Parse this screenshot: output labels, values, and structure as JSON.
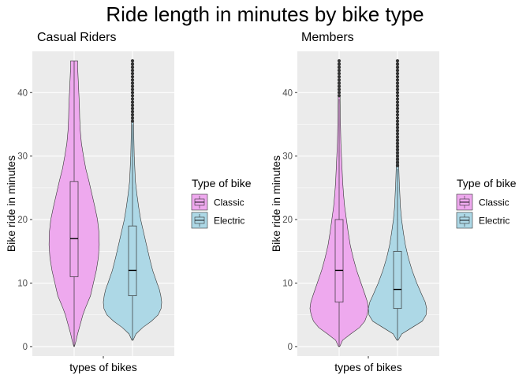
{
  "figure_title": "Ride length in minutes by bike type",
  "colors": {
    "classic": "#EEA9EE",
    "electric": "#ADD8E6",
    "panel_bg": "#EBEBEB",
    "grid": "#FFFFFF",
    "outline": "#333333",
    "outlier": "#333333"
  },
  "chart_data": [
    {
      "type": "violin",
      "title": "Casual Riders",
      "xlabel": "types of bikes",
      "ylabel": "Bike ride in minutes",
      "ylim": [
        -1.5,
        46.5
      ],
      "yticks": [
        0,
        10,
        20,
        30,
        40
      ],
      "legend": {
        "title": "Type of bike",
        "entries": [
          "Classic",
          "Electric"
        ]
      },
      "series": [
        {
          "name": "Classic",
          "color_key": "classic",
          "box": {
            "q1": 11,
            "median": 17,
            "q3": 26,
            "whisker_low": 0,
            "whisker_high": 45
          },
          "outliers": [],
          "density": [
            [
              0,
              0.01
            ],
            [
              1,
              0.07
            ],
            [
              2,
              0.12
            ],
            [
              3,
              0.18
            ],
            [
              4,
              0.24
            ],
            [
              5,
              0.3
            ],
            [
              6,
              0.38
            ],
            [
              7,
              0.47
            ],
            [
              8,
              0.56
            ],
            [
              10,
              0.66
            ],
            [
              12,
              0.76
            ],
            [
              14,
              0.83
            ],
            [
              16,
              0.86
            ],
            [
              18,
              0.85
            ],
            [
              20,
              0.8
            ],
            [
              22,
              0.71
            ],
            [
              24,
              0.61
            ],
            [
              26,
              0.51
            ],
            [
              28,
              0.4
            ],
            [
              30,
              0.32
            ],
            [
              32,
              0.25
            ],
            [
              34,
              0.21
            ],
            [
              36,
              0.19
            ],
            [
              38,
              0.18
            ],
            [
              40,
              0.16
            ],
            [
              42,
              0.14
            ],
            [
              44,
              0.12
            ],
            [
              45,
              0.12
            ]
          ]
        },
        {
          "name": "Electric",
          "color_key": "electric",
          "box": {
            "q1": 8,
            "median": 12,
            "q3": 19,
            "whisker_low": 1,
            "whisker_high": 35
          },
          "outliers": [
            35.5,
            36,
            36.5,
            37,
            37.5,
            38,
            38.5,
            39,
            39.5,
            40,
            40.5,
            41,
            41.5,
            42,
            42.5,
            43,
            43.5,
            44,
            44.5,
            45
          ],
          "density": [
            [
              1,
              0.02
            ],
            [
              2,
              0.12
            ],
            [
              3,
              0.35
            ],
            [
              4,
              0.65
            ],
            [
              5,
              0.88
            ],
            [
              6,
              0.98
            ],
            [
              7,
              1.0
            ],
            [
              8,
              0.97
            ],
            [
              9,
              0.92
            ],
            [
              10,
              0.84
            ],
            [
              12,
              0.69
            ],
            [
              14,
              0.58
            ],
            [
              16,
              0.48
            ],
            [
              18,
              0.38
            ],
            [
              20,
              0.28
            ],
            [
              22,
              0.21
            ],
            [
              24,
              0.15
            ],
            [
              26,
              0.1
            ],
            [
              28,
              0.08
            ],
            [
              30,
              0.06
            ],
            [
              32,
              0.05
            ],
            [
              34,
              0.04
            ],
            [
              36,
              0.03
            ],
            [
              38,
              0.02
            ],
            [
              40,
              0.02
            ],
            [
              42,
              0.015
            ],
            [
              44,
              0.01
            ],
            [
              45,
              0.01
            ]
          ]
        }
      ]
    },
    {
      "type": "violin",
      "title": "Members",
      "xlabel": "types of bikes",
      "ylabel": "Bike ride in minutes",
      "ylim": [
        -1.5,
        46.5
      ],
      "yticks": [
        0,
        10,
        20,
        30,
        40
      ],
      "legend": {
        "title": "Type of bike",
        "entries": [
          "Classic",
          "Electric"
        ]
      },
      "series": [
        {
          "name": "Classic",
          "color_key": "classic",
          "box": {
            "q1": 7,
            "median": 12,
            "q3": 20,
            "whisker_low": 0,
            "whisker_high": 39
          },
          "outliers": [
            39.5,
            40,
            40.5,
            41,
            41.5,
            42,
            42.5,
            43,
            43.5,
            44,
            44.5,
            45
          ],
          "density": [
            [
              0,
              0.02
            ],
            [
              1,
              0.12
            ],
            [
              2,
              0.4
            ],
            [
              3,
              0.7
            ],
            [
              4,
              0.88
            ],
            [
              5,
              0.96
            ],
            [
              6,
              1.0
            ],
            [
              7,
              0.97
            ],
            [
              8,
              0.9
            ],
            [
              10,
              0.75
            ],
            [
              12,
              0.6
            ],
            [
              14,
              0.48
            ],
            [
              16,
              0.38
            ],
            [
              18,
              0.31
            ],
            [
              20,
              0.25
            ],
            [
              22,
              0.19
            ],
            [
              24,
              0.15
            ],
            [
              26,
              0.12
            ],
            [
              28,
              0.1
            ],
            [
              30,
              0.08
            ],
            [
              32,
              0.06
            ],
            [
              34,
              0.05
            ],
            [
              36,
              0.04
            ],
            [
              38,
              0.035
            ],
            [
              40,
              0.03
            ],
            [
              42,
              0.025
            ],
            [
              44,
              0.02
            ],
            [
              45,
              0.02
            ]
          ]
        },
        {
          "name": "Electric",
          "color_key": "electric",
          "box": {
            "q1": 6,
            "median": 9,
            "q3": 15,
            "whisker_low": 1,
            "whisker_high": 28
          },
          "outliers": [
            28.5,
            29,
            29.5,
            30,
            30.5,
            31,
            31.5,
            32,
            32.5,
            33,
            33.5,
            34,
            34.5,
            35,
            35.5,
            36,
            36.5,
            37,
            37.5,
            38,
            38.5,
            39,
            39.5,
            40,
            40.5,
            41,
            41.5,
            42,
            42.5,
            43,
            43.5,
            44,
            44.5,
            45
          ],
          "density": [
            [
              1,
              0.02
            ],
            [
              2,
              0.15
            ],
            [
              3,
              0.5
            ],
            [
              4,
              0.85
            ],
            [
              5,
              0.98
            ],
            [
              6,
              1.0
            ],
            [
              7,
              0.95
            ],
            [
              8,
              0.85
            ],
            [
              10,
              0.66
            ],
            [
              12,
              0.5
            ],
            [
              14,
              0.37
            ],
            [
              16,
              0.27
            ],
            [
              18,
              0.2
            ],
            [
              20,
              0.14
            ],
            [
              22,
              0.1
            ],
            [
              24,
              0.08
            ],
            [
              26,
              0.06
            ],
            [
              28,
              0.045
            ],
            [
              30,
              0.035
            ],
            [
              32,
              0.03
            ],
            [
              34,
              0.025
            ],
            [
              36,
              0.02
            ],
            [
              38,
              0.018
            ],
            [
              40,
              0.015
            ],
            [
              42,
              0.012
            ],
            [
              44,
              0.01
            ],
            [
              45,
              0.01
            ]
          ]
        }
      ]
    }
  ]
}
